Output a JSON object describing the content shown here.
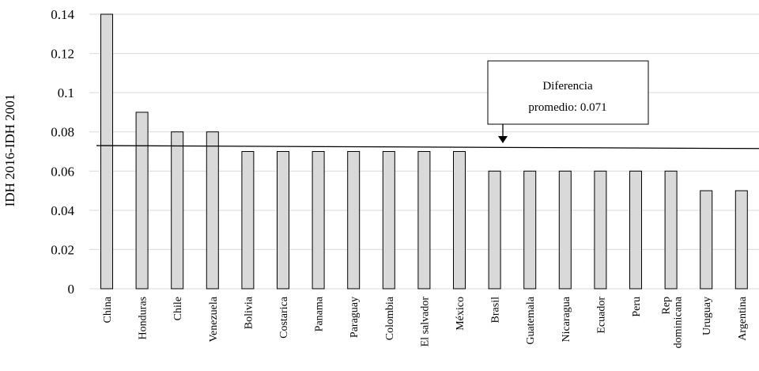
{
  "chart_data": {
    "type": "bar",
    "title": "",
    "xlabel": "",
    "ylabel": "IDH  2016-IDH  2001",
    "ylim": [
      0,
      0.14
    ],
    "yticks": [
      "0",
      "0.02",
      "0.04",
      "0.06",
      "0.08",
      "0.1",
      "0.12",
      "0.14"
    ],
    "grid": true,
    "legend": "none",
    "categories": [
      [
        "China"
      ],
      [
        "Honduras"
      ],
      [
        "Chile"
      ],
      [
        "Venezuela"
      ],
      [
        "Bolivia"
      ],
      [
        "Costarica"
      ],
      [
        "Panama"
      ],
      [
        "Paraguay"
      ],
      [
        "Colombia"
      ],
      [
        "El salvador"
      ],
      [
        "México"
      ],
      [
        "Brasil"
      ],
      [
        "Guatemala"
      ],
      [
        "Nicaragua"
      ],
      [
        "Ecuador"
      ],
      [
        "Peru"
      ],
      [
        "Rep",
        "dominicana"
      ],
      [
        "Uruguay"
      ],
      [
        "Argentina"
      ]
    ],
    "values": [
      0.14,
      0.09,
      0.08,
      0.08,
      0.07,
      0.07,
      0.07,
      0.07,
      0.07,
      0.07,
      0.07,
      0.06,
      0.06,
      0.06,
      0.06,
      0.06,
      0.06,
      0.05,
      0.05
    ],
    "trend_line": {
      "start": 0.073,
      "end": 0.0715
    },
    "annotation": {
      "lines": [
        "Diferencia",
        "promedio: 0.071"
      ]
    },
    "colors": {
      "bar_fill": "#d9d9d9",
      "bar_stroke": "#000000",
      "grid": "#d9d9d9"
    }
  }
}
